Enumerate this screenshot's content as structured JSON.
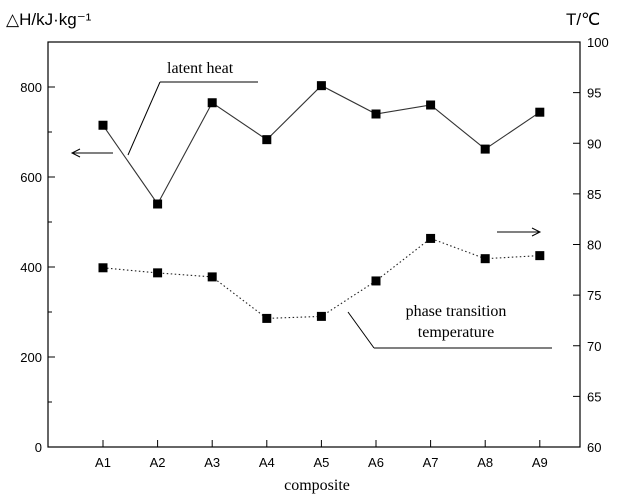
{
  "chart_data": {
    "type": "line",
    "categories": [
      "A1",
      "A2",
      "A3",
      "A4",
      "A5",
      "A6",
      "A7",
      "A8",
      "A9"
    ],
    "xlabel": "composite",
    "ylabel_left": "△H/kJ·kg⁻¹",
    "ylabel_right": "T/℃",
    "ylim_left": [
      0,
      900
    ],
    "ylim_right": [
      60,
      100
    ],
    "yticks_left": [
      0,
      200,
      400,
      600,
      800
    ],
    "yticks_right": [
      60,
      65,
      70,
      75,
      80,
      85,
      90,
      95,
      100
    ],
    "grid": false,
    "series": [
      {
        "key": "latent",
        "axis": "left",
        "style": "solid",
        "values": [
          715,
          540,
          765,
          683,
          803,
          740,
          760,
          662,
          744
        ]
      },
      {
        "key": "phase",
        "axis": "right",
        "style": "dotted",
        "values": [
          77.7,
          77.2,
          76.8,
          72.7,
          72.9,
          76.4,
          80.6,
          78.6,
          78.9
        ]
      }
    ],
    "annotations": {
      "latent": "latent heat",
      "phase_line1": "phase transition",
      "phase_line2": "temperature"
    }
  }
}
